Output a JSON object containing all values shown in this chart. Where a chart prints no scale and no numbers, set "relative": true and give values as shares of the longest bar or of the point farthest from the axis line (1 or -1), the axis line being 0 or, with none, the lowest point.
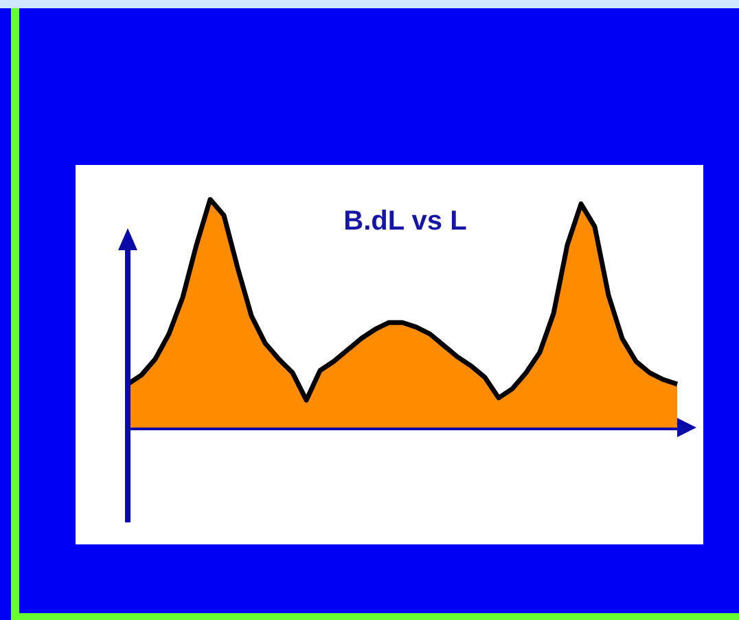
{
  "chart_data": {
    "type": "area",
    "title": "B.dL vs L",
    "relative": true,
    "color": "#ff8c00",
    "marker": "none",
    "grid": false,
    "categories": [
      null,
      null,
      null,
      null,
      null,
      null,
      null,
      null,
      null,
      null,
      null,
      null,
      null,
      null,
      null,
      null,
      null,
      null,
      null,
      null,
      null,
      null,
      null,
      null,
      null,
      null,
      null,
      null,
      null,
      null,
      null,
      null,
      null,
      null,
      null,
      null,
      null,
      null,
      null,
      null,
      null
    ],
    "values": [
      0.19,
      0.23,
      0.3,
      0.41,
      0.57,
      0.8,
      1.0,
      0.93,
      0.7,
      0.49,
      0.37,
      0.3,
      0.24,
      0.12,
      0.25,
      0.29,
      0.34,
      0.39,
      0.43,
      0.46,
      0.46,
      0.44,
      0.41,
      0.36,
      0.31,
      0.27,
      0.22,
      0.13,
      0.17,
      0.24,
      0.33,
      0.5,
      0.8,
      0.98,
      0.88,
      0.58,
      0.39,
      0.29,
      0.24,
      0.21,
      0.19
    ]
  }
}
